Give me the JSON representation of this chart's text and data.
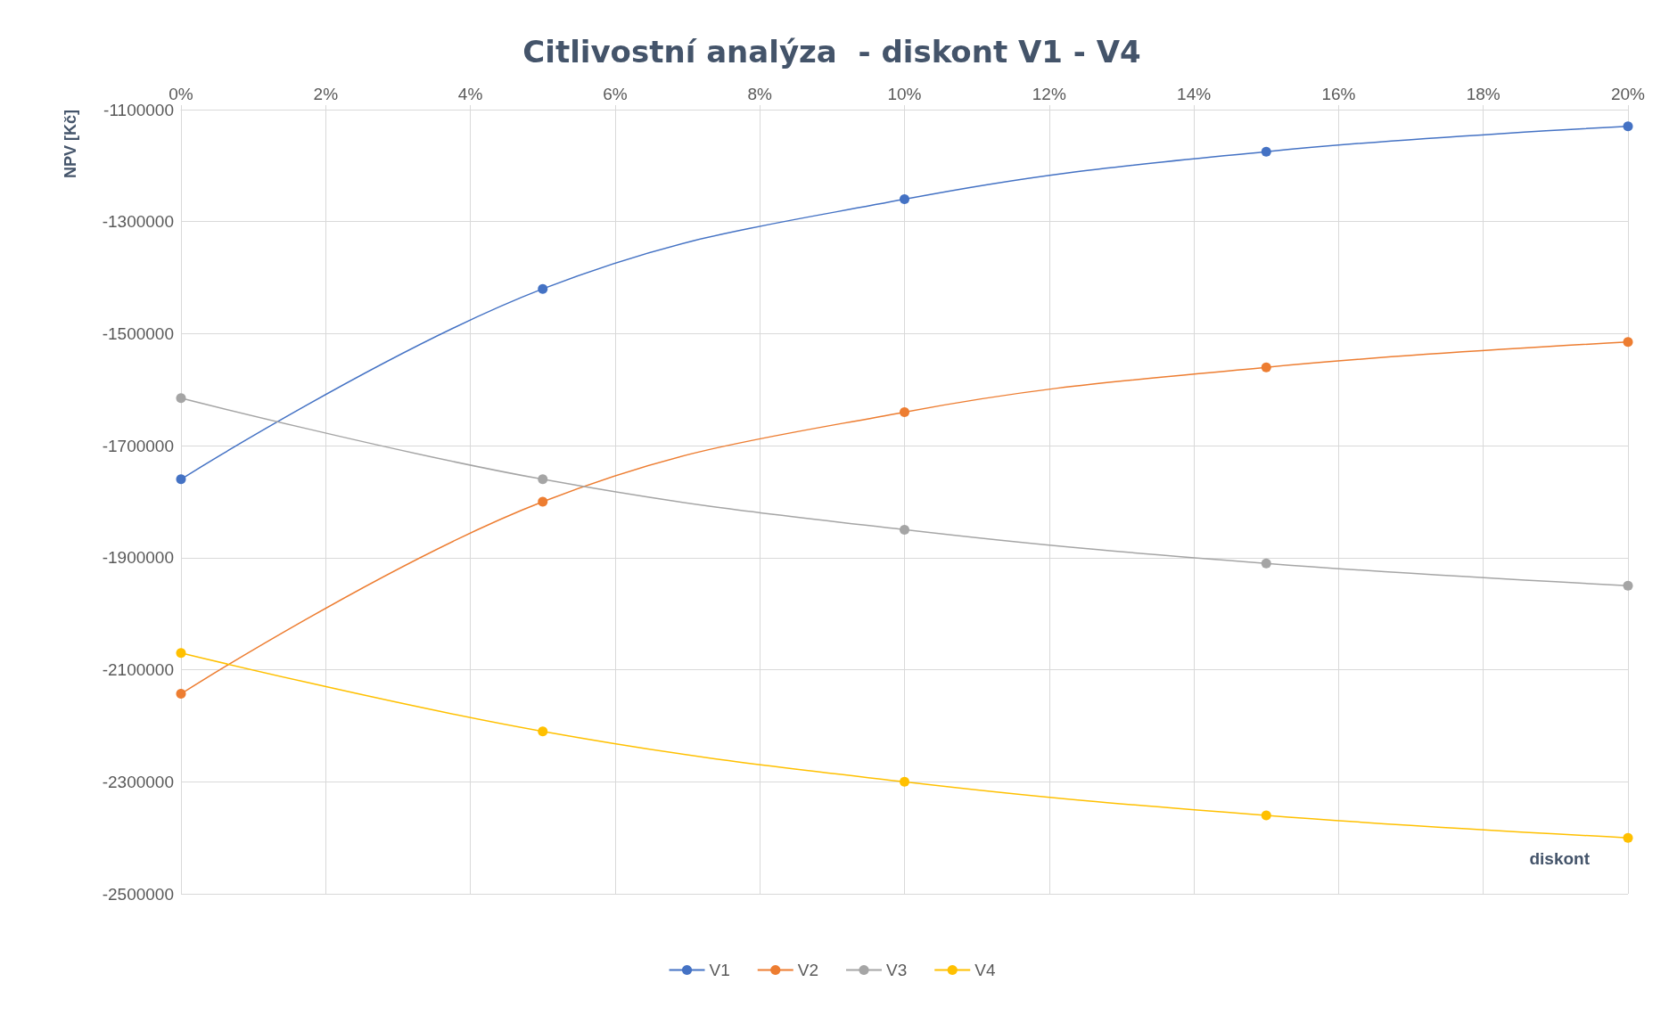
{
  "chart_data": {
    "type": "line",
    "title": "Citlivostní analýza  - diskont V1 - V4",
    "xlabel": "diskont",
    "ylabel": "NPV [Kč]",
    "x": [
      0,
      5,
      10,
      15,
      20
    ],
    "series": [
      {
        "name": "V1",
        "color": "#4472c4",
        "values": [
          -1760000,
          -1420000,
          -1260000,
          -1175000,
          -1130000
        ]
      },
      {
        "name": "V2",
        "color": "#ed7d31",
        "values": [
          -2143000,
          -1800000,
          -1640000,
          -1560000,
          -1515000
        ]
      },
      {
        "name": "V3",
        "color": "#a5a5a5",
        "values": [
          -1615000,
          -1760000,
          -1850000,
          -1910000,
          -1950000
        ]
      },
      {
        "name": "V4",
        "color": "#ffc000",
        "values": [
          -2070000,
          -2210000,
          -2300000,
          -2360000,
          -2400000
        ]
      }
    ],
    "xlim": [
      0,
      20
    ],
    "xticks": [
      {
        "value": 0,
        "label": "0%"
      },
      {
        "value": 2,
        "label": "2%"
      },
      {
        "value": 4,
        "label": "4%"
      },
      {
        "value": 6,
        "label": "6%"
      },
      {
        "value": 8,
        "label": "8%"
      },
      {
        "value": 10,
        "label": "10%"
      },
      {
        "value": 12,
        "label": "12%"
      },
      {
        "value": 14,
        "label": "14%"
      },
      {
        "value": 16,
        "label": "16%"
      },
      {
        "value": 18,
        "label": "18%"
      },
      {
        "value": 20,
        "label": "20%"
      }
    ],
    "ylim": [
      -2500000,
      -1100000
    ],
    "yticks": [
      -2500000,
      -2300000,
      -2100000,
      -1900000,
      -1700000,
      -1500000,
      -1300000,
      -1100000
    ],
    "grid": true,
    "legend": "bottom",
    "marker": "circle",
    "line_style": "solid"
  }
}
